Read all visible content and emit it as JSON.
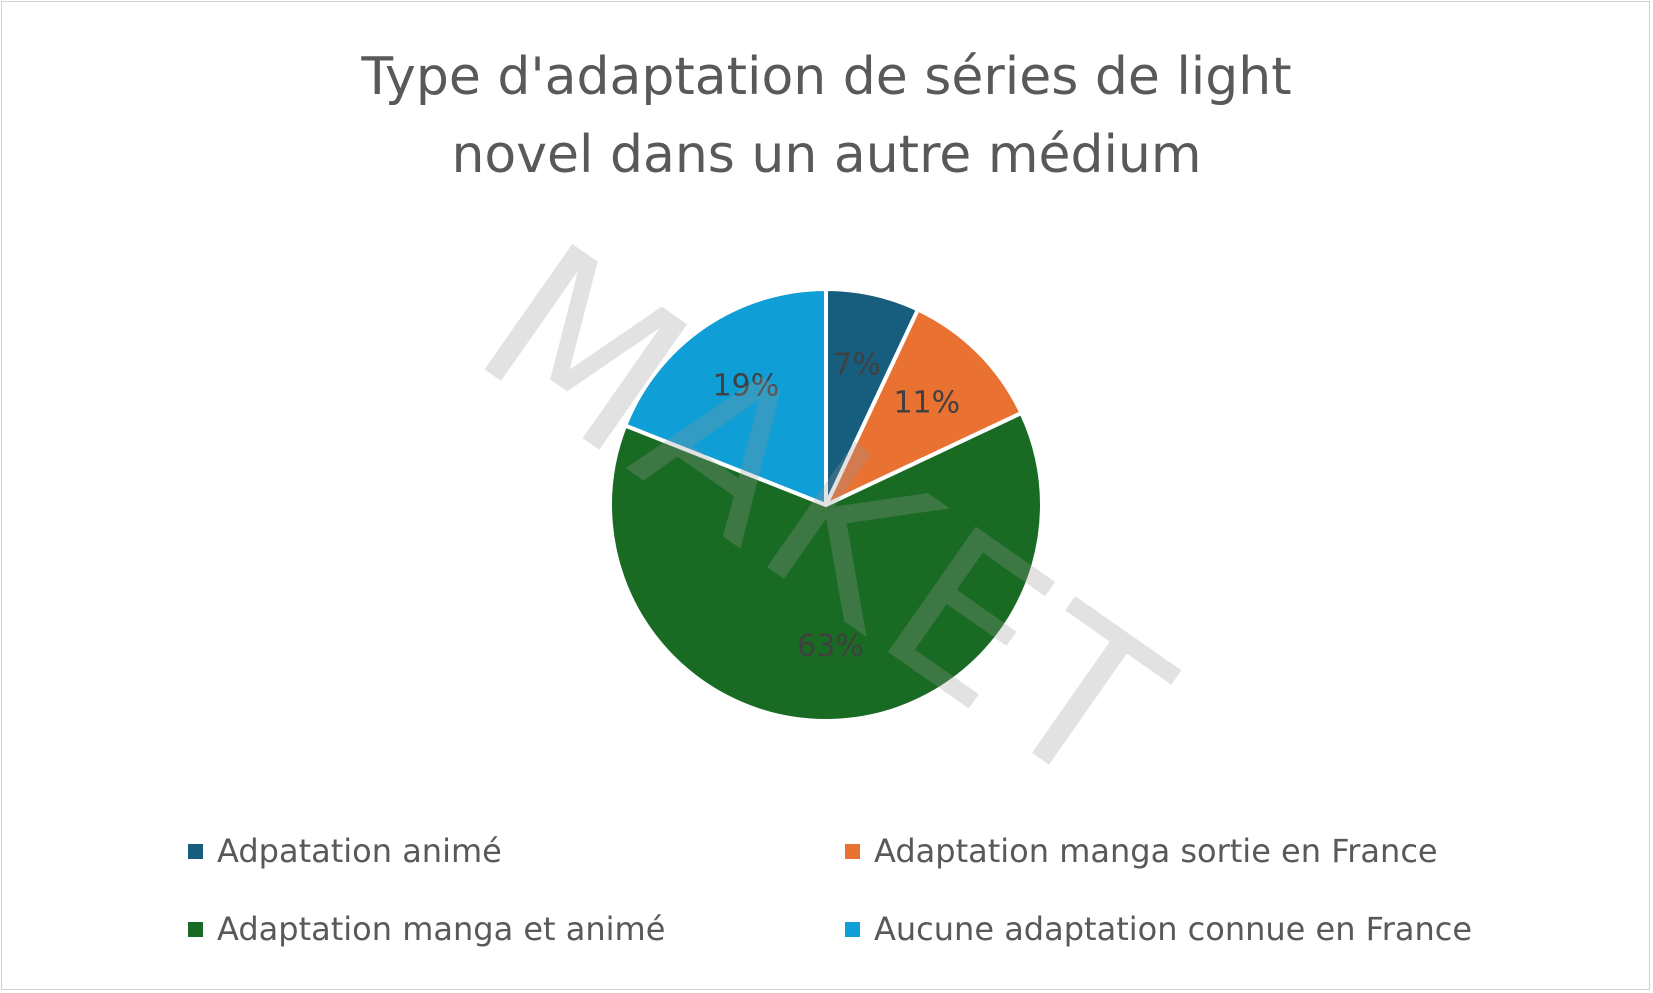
{
  "chart_data": {
    "type": "pie",
    "title": "Type d'adaptation de séries de light novel dans un autre médium",
    "categories": [
      "Adpatation animé",
      "Adaptation manga sortie en France",
      "Adaptation manga et animé",
      "Aucune adaptation connue en France"
    ],
    "values": [
      7,
      11,
      63,
      19
    ],
    "data_labels": [
      "7%",
      "11%",
      "63%",
      "19%"
    ],
    "colors": [
      "#175e7e",
      "#e97132",
      "#196b24",
      "#0f9ed5"
    ],
    "legend_position": "bottom",
    "watermark": "MAKET"
  }
}
